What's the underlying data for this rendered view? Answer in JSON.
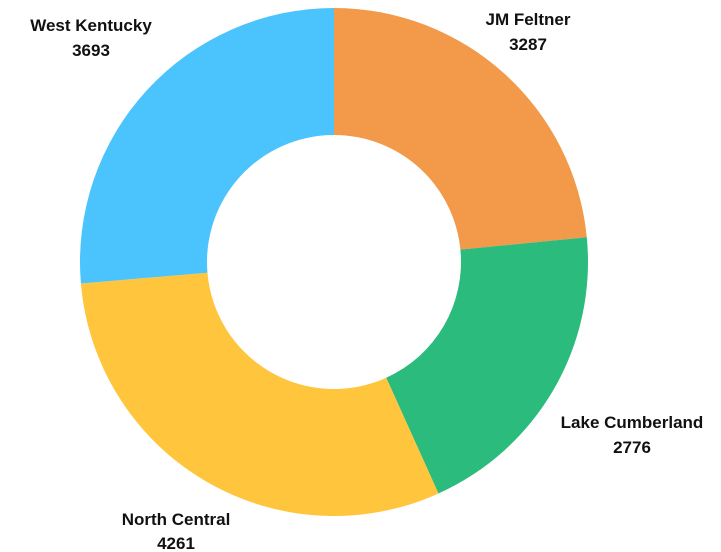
{
  "chart_data": {
    "type": "pie",
    "donut": true,
    "title": "",
    "categories": [
      "JM Feltner",
      "Lake Cumberland",
      "North Central",
      "West Kentucky"
    ],
    "values": [
      3287,
      2776,
      4261,
      3693
    ],
    "colors": [
      "#F2994A",
      "#2BBB7D",
      "#FFC53D",
      "#4BC3FC"
    ],
    "legend": "none",
    "data_labels": "outside, name above value"
  }
}
